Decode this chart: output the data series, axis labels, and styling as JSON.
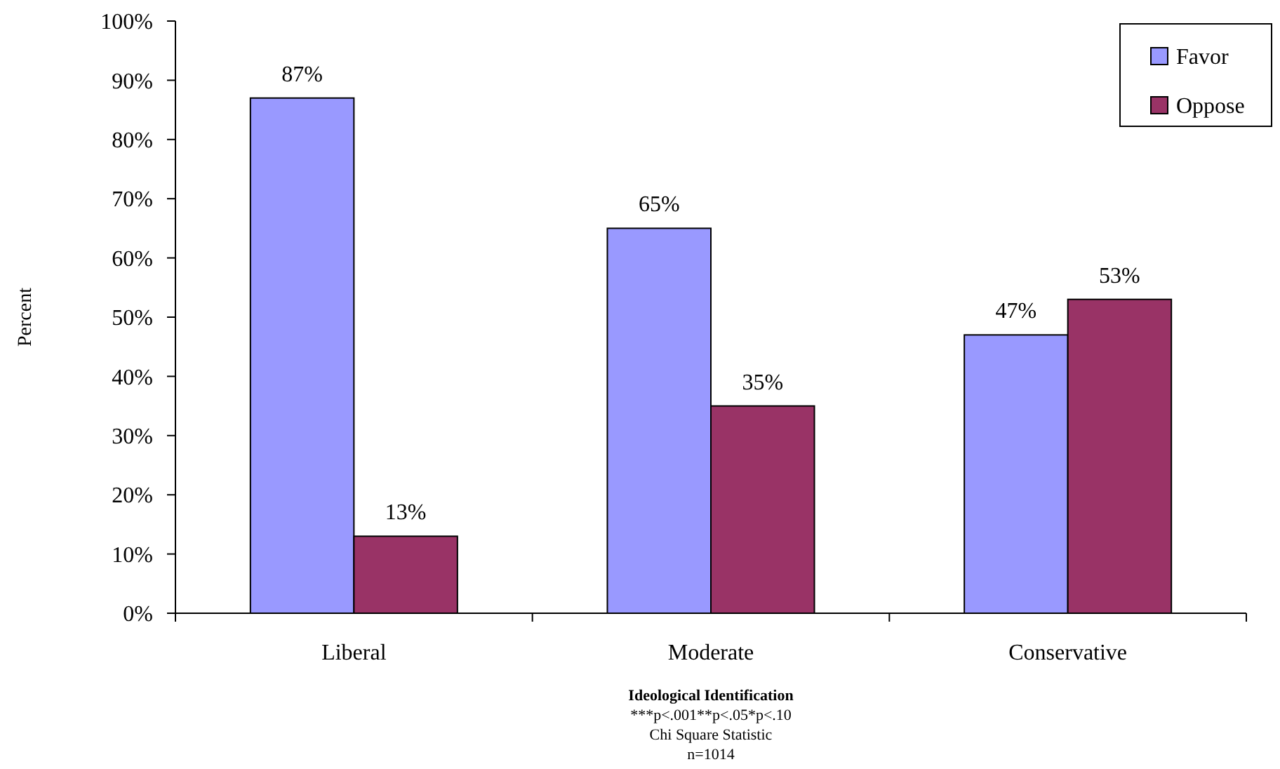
{
  "chart_data": {
    "type": "bar",
    "xlabel": "Ideological Identification",
    "ylabel": "Percent",
    "annotations": [
      "***p<.001**p<.05*p<.10",
      "Chi Square Statistic",
      "n=1014"
    ],
    "categories": [
      "Liberal",
      "Moderate",
      "Conservative"
    ],
    "series": [
      {
        "name": "Favor",
        "color": "#9999ff",
        "values": [
          87,
          65,
          47
        ],
        "value_labels": [
          "87%",
          "65%",
          "47%"
        ]
      },
      {
        "name": "Oppose",
        "color": "#993366",
        "values": [
          13,
          35,
          53
        ],
        "value_labels": [
          "13%",
          "35%",
          "53%"
        ]
      }
    ],
    "ylim": [
      0,
      100
    ],
    "yticks": [
      {
        "value": 0,
        "label": "0%"
      },
      {
        "value": 10,
        "label": "10%"
      },
      {
        "value": 20,
        "label": "20%"
      },
      {
        "value": 30,
        "label": "30%"
      },
      {
        "value": 40,
        "label": "40%"
      },
      {
        "value": 50,
        "label": "50%"
      },
      {
        "value": 60,
        "label": "60%"
      },
      {
        "value": 70,
        "label": "70%"
      },
      {
        "value": 80,
        "label": "80%"
      },
      {
        "value": 90,
        "label": "90%"
      },
      {
        "value": 100,
        "label": "100%"
      }
    ],
    "legend": "top right"
  }
}
